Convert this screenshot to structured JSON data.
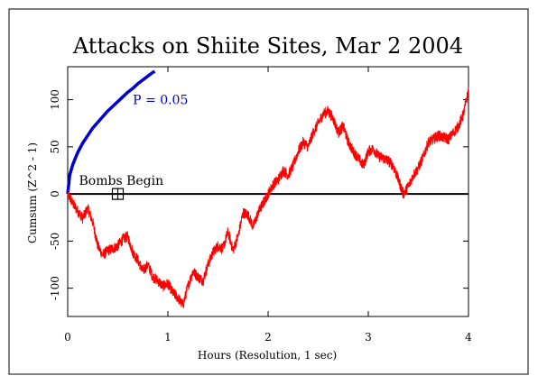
{
  "chart_data": {
    "type": "line",
    "title": "Attacks on Shiite Sites, Mar 2 2004",
    "xlabel": "Hours (Resolution, 1 sec)",
    "ylabel": "Cumsum (Z^2 - 1)",
    "xlim": [
      0,
      4
    ],
    "ylim": [
      -130,
      135
    ],
    "xticks": [
      0,
      1,
      2,
      3,
      4
    ],
    "yticks": [
      -100,
      -50,
      0,
      50,
      100
    ],
    "grid": false,
    "colors": {
      "cumsum": "#ff0000",
      "envelope": "#0000cc",
      "baseline": "#000000"
    },
    "series": [
      {
        "values_of": "cumulative deviation",
        "x": [
          0,
          0.05,
          0.1,
          0.15,
          0.2,
          0.25,
          0.3,
          0.35,
          0.4,
          0.45,
          0.5,
          0.55,
          0.6,
          0.65,
          0.7,
          0.75,
          0.8,
          0.85,
          0.9,
          0.95,
          1.0,
          1.05,
          1.1,
          1.15,
          1.2,
          1.25,
          1.3,
          1.35,
          1.4,
          1.45,
          1.5,
          1.55,
          1.6,
          1.65,
          1.7,
          1.75,
          1.8,
          1.85,
          1.9,
          1.95,
          2.0,
          2.05,
          2.1,
          2.15,
          2.2,
          2.25,
          2.3,
          2.35,
          2.4,
          2.45,
          2.5,
          2.55,
          2.6,
          2.65,
          2.7,
          2.75,
          2.8,
          2.85,
          2.9,
          2.95,
          3.0,
          3.05,
          3.1,
          3.15,
          3.2,
          3.25,
          3.3,
          3.35,
          3.4,
          3.45,
          3.5,
          3.55,
          3.6,
          3.65,
          3.7,
          3.75,
          3.8,
          3.85,
          3.9,
          3.95,
          4.0
        ],
        "values": [
          0,
          -10,
          -18,
          -26,
          -15,
          -30,
          -55,
          -65,
          -60,
          -58,
          -55,
          -48,
          -45,
          -62,
          -70,
          -82,
          -75,
          -88,
          -92,
          -98,
          -95,
          -105,
          -110,
          -118,
          -98,
          -82,
          -88,
          -92,
          -75,
          -62,
          -55,
          -58,
          -40,
          -60,
          -45,
          -20,
          -22,
          -35,
          -20,
          -10,
          0,
          10,
          15,
          25,
          20,
          30,
          45,
          55,
          50,
          65,
          75,
          85,
          88,
          80,
          65,
          72,
          55,
          45,
          38,
          30,
          45,
          48,
          40,
          38,
          35,
          30,
          15,
          0,
          8,
          20,
          28,
          40,
          55,
          58,
          62,
          60,
          58,
          65,
          72,
          85,
          110
        ]
      },
      {
        "values_of": "P = 0.05 envelope",
        "x": [
          0,
          0.02,
          0.05,
          0.1,
          0.15,
          0.2,
          0.25,
          0.3,
          0.35,
          0.4,
          0.45,
          0.5,
          0.55,
          0.6,
          0.65,
          0.7,
          0.75,
          0.8,
          0.85,
          0.87
        ],
        "values": [
          0,
          20,
          31,
          44,
          54,
          62,
          70,
          76,
          82,
          88,
          93,
          98,
          103,
          108,
          112,
          117,
          121,
          125,
          129,
          130
        ]
      }
    ],
    "annotations": [
      {
        "text": "P = 0.05",
        "x": 0.65,
        "y": 100
      },
      {
        "text": "Bombs Begin",
        "marker_x": 0.5,
        "marker_y": 0
      }
    ]
  }
}
